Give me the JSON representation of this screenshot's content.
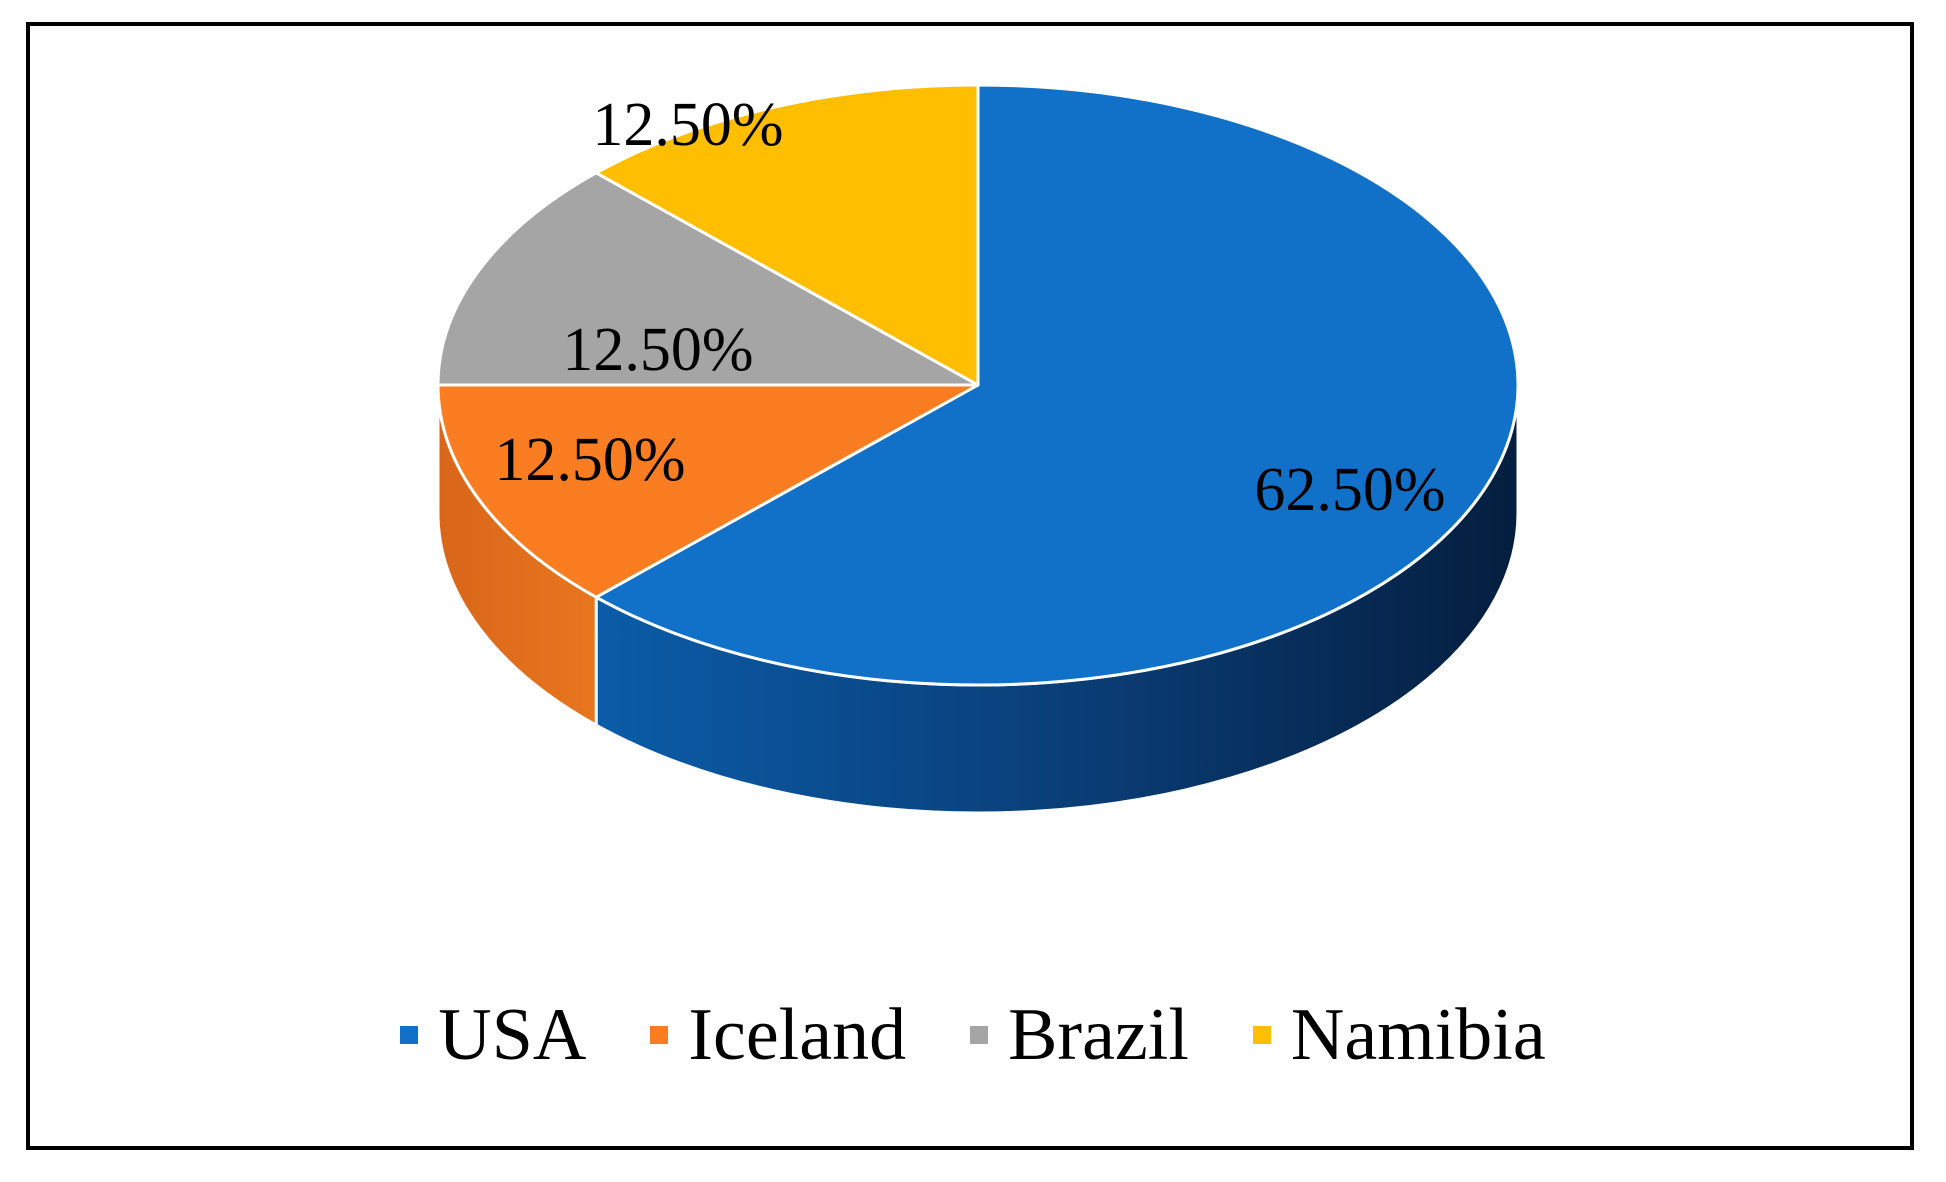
{
  "chart_data": {
    "type": "pie",
    "style": "3d",
    "legend_position": "bottom",
    "slices": [
      {
        "name": "USA",
        "value": 62.5,
        "label": "62.50%",
        "color": "#1170C8",
        "side_color": "#0A3F78"
      },
      {
        "name": "Iceland",
        "value": 12.5,
        "label": "12.50%",
        "color": "#FA7E21",
        "side_color": "#C85A10"
      },
      {
        "name": "Brazil",
        "value": 12.5,
        "label": "12.50%",
        "color": "#A5A5A5",
        "side_color": "#7A7A7A"
      },
      {
        "name": "Namibia",
        "value": 12.5,
        "label": "12.50%",
        "color": "#FFBE00",
        "side_color": "#C79200"
      }
    ]
  }
}
